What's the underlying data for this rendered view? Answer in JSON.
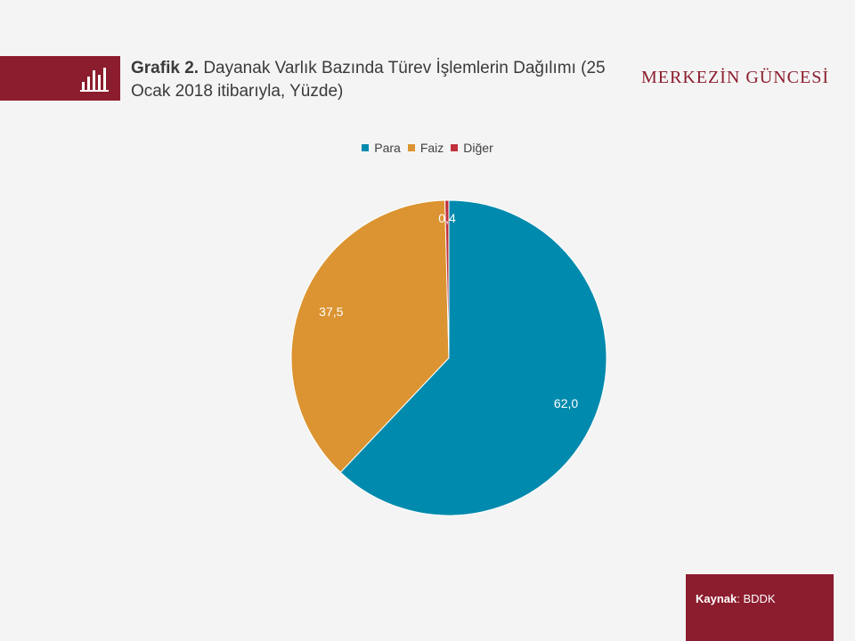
{
  "header": {
    "title_bold": "Grafik 2.",
    "title_text": " Dayanak Varlık Bazında Türev İşlemlerin Dağılımı (25 Ocak 2018 itibarıyla, Yüzde)",
    "brand": "MERKEZİN GÜNCESİ",
    "icon": "bar-chart-icon"
  },
  "colors": {
    "accent": "#8c1d2e",
    "para": "#008aad",
    "faiz": "#db9431",
    "diger": "#c0303c"
  },
  "chart_data": {
    "type": "pie",
    "title": "Dayanak Varlık Bazında Türev İşlemlerin Dağılımı (25 Ocak 2018 itibarıyla, Yüzde)",
    "categories": [
      "Para",
      "Faiz",
      "Diğer"
    ],
    "values": [
      62.0,
      37.5,
      0.4
    ],
    "labels": [
      "62,0",
      "37,5",
      "0,4"
    ],
    "colors": [
      "#008aad",
      "#db9431",
      "#c0303c"
    ],
    "legend_position": "top"
  },
  "footer": {
    "source_label": "Kaynak",
    "source_sep": ": ",
    "source_value": "BDDK"
  }
}
